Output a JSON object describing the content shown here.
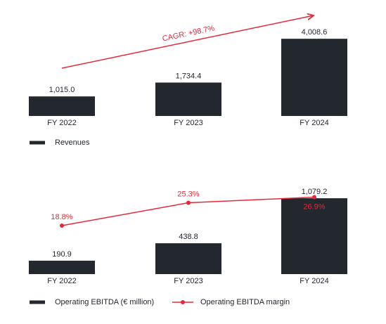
{
  "chart_data": [
    {
      "type": "bar",
      "categories": [
        "FY 2022",
        "FY 2023",
        "FY 2024"
      ],
      "series": [
        {
          "name": "Revenues",
          "color": "#23272e",
          "values": [
            1015.0,
            1734.4,
            4008.6
          ],
          "value_labels": [
            "1,015.0",
            "1,734.4",
            "4,008.6"
          ]
        }
      ],
      "annotation": "CAGR: +98.7%",
      "annotation_color": "#e5283a",
      "ylim": [
        0,
        5000
      ]
    },
    {
      "type": "bar",
      "categories": [
        "FY 2022",
        "FY 2023",
        "FY 2024"
      ],
      "series": [
        {
          "name": "Operating EBITDA (€ million)",
          "color": "#23272e",
          "values": [
            190.9,
            438.8,
            1079.2
          ],
          "value_labels": [
            "190.9",
            "438.8",
            "1,079.2"
          ]
        },
        {
          "name": "Operating EBITDA margin",
          "type": "line",
          "axis": "y2",
          "color": "#e5283a",
          "values": [
            18.8,
            25.3,
            26.9
          ],
          "value_labels": [
            "18.8%",
            "25.3%",
            "26.9%"
          ]
        }
      ],
      "ylim": [
        0,
        1250
      ],
      "y2lim": [
        5,
        30
      ]
    }
  ]
}
